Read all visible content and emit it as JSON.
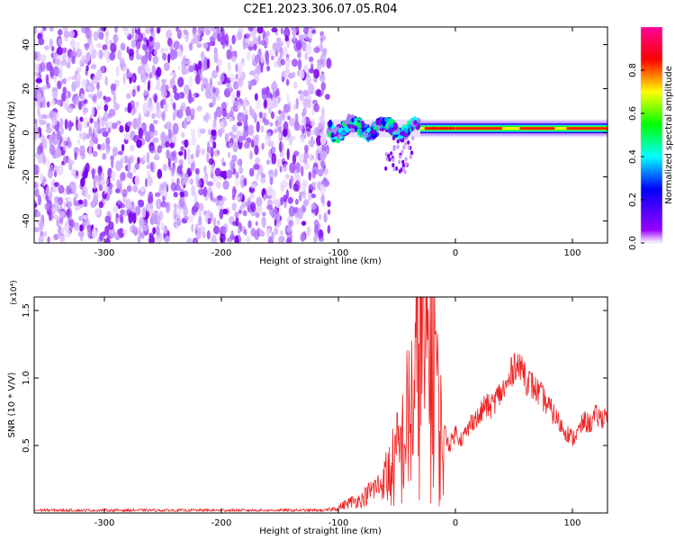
{
  "figure": {
    "title": "C2E1.2023.306.07.05.R04"
  },
  "chart_data": [
    {
      "type": "heatmap",
      "xlabel": "Height of straight line (km)",
      "ylabel": "Frequency (Hz)",
      "xlim": [
        -360,
        130
      ],
      "ylim": [
        -50,
        48
      ],
      "x_ticks": [
        -300,
        -200,
        -100,
        0,
        100
      ],
      "y_ticks": [
        -40,
        -20,
        0,
        20,
        40
      ],
      "colorbar": {
        "label": "Normalized spectral amplitude",
        "range": [
          0.0,
          1.0
        ],
        "ticks": [
          "0.0",
          "0.2",
          "0.4",
          "0.6",
          "0.8"
        ],
        "colors": [
          "#ffffff",
          "#9900ff",
          "#0000ff",
          "#00ffff",
          "#00ff00",
          "#ffff00",
          "#ff0000",
          "#ff00aa"
        ]
      },
      "regions": [
        {
          "x_range": [
            -360,
            -108
          ],
          "freq_range": [
            -50,
            48
          ],
          "amplitude": 0.1,
          "pattern": "broadband noise"
        },
        {
          "x_range": [
            -108,
            -30
          ],
          "freq_center": 2,
          "freq_width": 8,
          "amplitude": 0.5,
          "pattern": "meandering echo with scatter"
        },
        {
          "x_range": [
            -30,
            130
          ],
          "freq_center": 2,
          "freq_width": 3,
          "amplitude": 1.0,
          "pattern": "narrow band"
        }
      ]
    },
    {
      "type": "line",
      "xlabel": "Height of straight line (km)",
      "ylabel": "SNR (10 * V/V)",
      "y_multiplier": "(x10⁴)",
      "xlim": [
        -360,
        130
      ],
      "ylim": [
        0,
        1.6
      ],
      "x_ticks": [
        -300,
        -200,
        -100,
        0,
        100
      ],
      "y_ticks": [
        "0.5",
        "1.0",
        "1.5"
      ],
      "series": [
        {
          "color": "#ee2222",
          "x": [
            -360,
            -300,
            -250,
            -200,
            -150,
            -110,
            -100,
            -90,
            -80,
            -75,
            -70,
            -65,
            -60,
            -55,
            -50,
            -45,
            -40,
            -35,
            -32,
            -30,
            -28,
            -25,
            -22,
            -20,
            -18,
            -15,
            -12,
            -10,
            -5,
            0,
            5,
            10,
            15,
            20,
            25,
            30,
            35,
            40,
            45,
            50,
            52,
            55,
            58,
            60,
            65,
            70,
            75,
            80,
            85,
            90,
            95,
            100,
            105,
            110,
            115,
            120,
            125,
            130
          ],
          "y": [
            0.02,
            0.02,
            0.02,
            0.02,
            0.02,
            0.02,
            0.04,
            0.08,
            0.1,
            0.14,
            0.18,
            0.2,
            0.26,
            0.3,
            0.4,
            0.5,
            0.7,
            0.85,
            1.1,
            1.55,
            1.2,
            1.0,
            1.35,
            0.9,
            1.55,
            0.7,
            0.55,
            0.62,
            0.5,
            0.6,
            0.55,
            0.6,
            0.7,
            0.7,
            0.8,
            0.78,
            0.85,
            0.9,
            0.95,
            1.1,
            1.12,
            1.05,
            1.1,
            1.0,
            0.95,
            0.9,
            0.85,
            0.78,
            0.72,
            0.65,
            0.6,
            0.55,
            0.6,
            0.68,
            0.66,
            0.72,
            0.7,
            0.75
          ]
        }
      ]
    }
  ]
}
